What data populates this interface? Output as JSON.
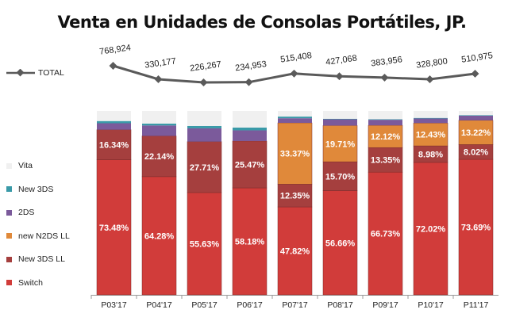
{
  "chart_data": {
    "type": "bar",
    "title": "Venta en Unidades de Consolas Portátiles, JP.",
    "categories": [
      "P03'17",
      "P04'17",
      "P05'17",
      "P06'17",
      "P07'17",
      "P08'17",
      "P09'17",
      "P10'17",
      "P11'17"
    ],
    "series": [
      {
        "name": "Switch",
        "color": "#d13c3a",
        "values": [
          73.48,
          64.28,
          55.63,
          58.18,
          47.82,
          56.66,
          66.73,
          72.02,
          73.69
        ],
        "labels": [
          "73.48%",
          "64.28%",
          "55.63%",
          "58.18%",
          "47.82%",
          "56.66%",
          "66.73%",
          "72.02%",
          "73.69%"
        ]
      },
      {
        "name": "New 3DS LL",
        "color": "#a53f3e",
        "values": [
          16.34,
          22.14,
          27.71,
          25.47,
          12.35,
          15.7,
          13.35,
          8.98,
          8.02
        ],
        "labels": [
          "16.34%",
          "22.14%",
          "27.71%",
          "25.47%",
          "12.35%",
          "15.70%",
          "13.35%",
          "8.98%",
          "8.02%"
        ]
      },
      {
        "name": "new N2DS LL",
        "color": "#e0893a",
        "values": [
          0,
          0,
          0,
          0,
          33.37,
          19.71,
          12.12,
          12.43,
          13.22
        ],
        "labels": [
          "",
          "",
          "",
          "",
          "33.37%",
          "19.71%",
          "12.12%",
          "12.43%",
          "13.22%"
        ]
      },
      {
        "name": "2DS",
        "color": "#7b5a9b",
        "values": [
          3.5,
          5.7,
          7.2,
          5.8,
          2.5,
          3.4,
          3.0,
          2.5,
          2.5
        ],
        "labels": [
          "",
          "",
          "",
          "",
          "",
          "",
          "",
          "",
          ""
        ]
      },
      {
        "name": "New 3DS",
        "color": "#3a9aa8",
        "values": [
          1.2,
          1.0,
          1.3,
          1.5,
          0.9,
          0.3,
          0.3,
          0.3,
          0.3
        ],
        "labels": [
          "",
          "",
          "",
          "",
          "",
          "",
          "",
          "",
          ""
        ]
      },
      {
        "name": "Vita",
        "color": "#f0f0f0",
        "values": [
          5.48,
          6.88,
          8.16,
          9.05,
          3.06,
          4.23,
          4.5,
          3.77,
          2.27
        ],
        "labels": [
          "",
          "",
          "",
          "",
          "",
          "",
          "",
          "",
          ""
        ]
      }
    ],
    "total": {
      "name": "TOTAL",
      "color": "#5a5a5a",
      "values": [
        768924,
        330177,
        226267,
        234953,
        515408,
        427068,
        383956,
        328800,
        510975
      ],
      "labels": [
        "768,924",
        "330,177",
        "226,267",
        "234,953",
        "515,408",
        "427,068",
        "383,956",
        "328,800",
        "510,975"
      ]
    },
    "ylim": [
      0,
      100
    ],
    "legend": "left"
  }
}
